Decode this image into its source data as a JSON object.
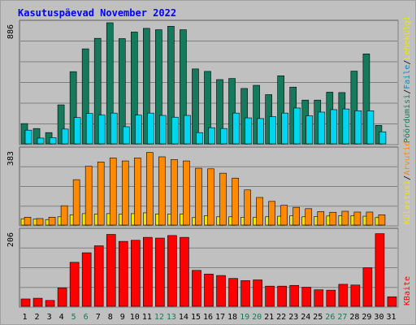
{
  "title": "Kasutuspäevad November 2022",
  "colors": {
    "title": "#0000ff",
    "panel_bg": "#c0c0c0",
    "grid": "#808080",
    "hits_dark": "#157a5c",
    "files_cyan": "#00d6f0",
    "pages_yellow": "#f2e600",
    "visits_orange": "#ff8a00",
    "kbytes_red": "#ff0000",
    "weekend_label": "#157a5c"
  },
  "right_legend": {
    "top": [
      "Pöördumisi",
      "/",
      "Faile",
      "/",
      "Lehekülgi"
    ],
    "middle": [
      "Külastusi",
      "/",
      "Arvutid"
    ],
    "bottom": [
      "KBaite"
    ]
  },
  "chart_data": [
    {
      "type": "bar",
      "name": "top",
      "ymax_label": "886",
      "ylim": [
        0,
        886
      ],
      "categories": [
        "1",
        "2",
        "3",
        "4",
        "5",
        "6",
        "7",
        "8",
        "9",
        "10",
        "11",
        "12",
        "13",
        "14",
        "15",
        "16",
        "17",
        "18",
        "19",
        "20",
        "21",
        "22",
        "23",
        "24",
        "25",
        "26",
        "27",
        "28",
        "29",
        "30",
        "31"
      ],
      "weekend_days": [
        "5",
        "6",
        "12",
        "13",
        "19",
        "20",
        "26",
        "27"
      ],
      "series": [
        {
          "name": "Pöördumisi",
          "values": [
            148,
            112,
            82,
            285,
            528,
            695,
            772,
            886,
            770,
            818,
            845,
            835,
            860,
            835,
            548,
            530,
            470,
            478,
            405,
            428,
            360,
            498,
            415,
            320,
            320,
            378,
            375,
            532,
            658,
            135,
            0
          ]
        },
        {
          "name": "Faile",
          "values": [
            100,
            42,
            45,
            108,
            192,
            222,
            210,
            225,
            125,
            210,
            225,
            208,
            195,
            208,
            82,
            118,
            112,
            225,
            190,
            185,
            198,
            225,
            262,
            205,
            232,
            250,
            255,
            242,
            242,
            88,
            0
          ]
        }
      ]
    },
    {
      "type": "bar",
      "name": "middle",
      "ymax_label": "383",
      "ylim": [
        0,
        383
      ],
      "categories": [
        "1",
        "2",
        "3",
        "4",
        "5",
        "6",
        "7",
        "8",
        "9",
        "10",
        "11",
        "12",
        "13",
        "14",
        "15",
        "16",
        "17",
        "18",
        "19",
        "20",
        "21",
        "22",
        "23",
        "24",
        "25",
        "26",
        "27",
        "28",
        "29",
        "30",
        "31"
      ],
      "series": [
        {
          "name": "Arvutid",
          "values": [
            32,
            30,
            28,
            42,
            52,
            58,
            56,
            58,
            55,
            58,
            62,
            56,
            56,
            56,
            38,
            48,
            42,
            42,
            40,
            40,
            42,
            45,
            48,
            42,
            44,
            46,
            48,
            48,
            45,
            38,
            0
          ]
        },
        {
          "name": "Külastusi",
          "values": [
            40,
            33,
            40,
            98,
            230,
            298,
            320,
            340,
            325,
            340,
            368,
            346,
            332,
            325,
            288,
            285,
            263,
            238,
            178,
            140,
            120,
            100,
            90,
            83,
            68,
            65,
            70,
            66,
            66,
            52,
            0
          ]
        }
      ]
    },
    {
      "type": "bar",
      "name": "bottom",
      "ymax_label": "206",
      "ylim": [
        0,
        206
      ],
      "categories": [
        "1",
        "2",
        "3",
        "4",
        "5",
        "6",
        "7",
        "8",
        "9",
        "10",
        "11",
        "12",
        "13",
        "14",
        "15",
        "16",
        "17",
        "18",
        "19",
        "20",
        "21",
        "22",
        "23",
        "24",
        "25",
        "26",
        "27",
        "28",
        "29",
        "30",
        "31"
      ],
      "series": [
        {
          "name": "KBaite",
          "values": [
            20,
            22,
            16,
            50,
            120,
            146,
            165,
            196,
            177,
            180,
            188,
            186,
            193,
            188,
            98,
            88,
            84,
            76,
            70,
            72,
            55,
            55,
            57,
            52,
            45,
            44,
            60,
            58,
            105,
            198,
            26
          ]
        }
      ]
    }
  ]
}
